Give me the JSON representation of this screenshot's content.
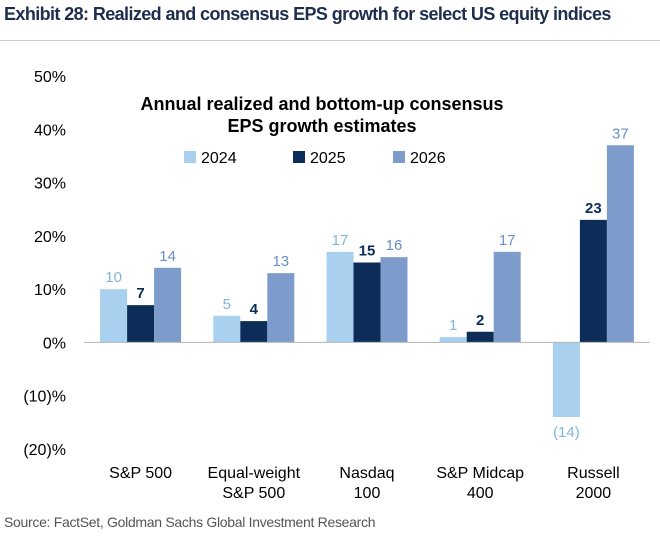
{
  "header": {
    "exhibit_title": "Exhibit 28: Realized and consensus EPS growth for select US equity indices"
  },
  "footer": {
    "source": "Source: FactSet, Goldman Sachs Global Investment Research"
  },
  "chart_data": {
    "type": "bar",
    "title_lines": [
      "Annual realized and bottom-up consensus",
      "EPS growth estimates"
    ],
    "categories": [
      [
        "S&P 500"
      ],
      [
        "Equal-weight",
        "S&P 500"
      ],
      [
        "Nasdaq",
        "100"
      ],
      [
        "S&P Midcap",
        "400"
      ],
      [
        "Russell",
        "2000"
      ]
    ],
    "series": [
      {
        "name": "2024",
        "color": "#a9d0ef",
        "label_color": "#7fb5e1",
        "label_bold": false,
        "values": [
          10,
          5,
          17,
          1,
          -14
        ],
        "labels": [
          "10",
          "5",
          "17",
          "1",
          "(14)"
        ]
      },
      {
        "name": "2025",
        "color": "#0b2d58",
        "label_color": "#0b2d58",
        "label_bold": true,
        "values": [
          7,
          4,
          15,
          2,
          23
        ],
        "labels": [
          "7",
          "4",
          "15",
          "2",
          "23"
        ]
      },
      {
        "name": "2026",
        "color": "#7d9ccb",
        "label_color": "#6a8fc6",
        "label_bold": false,
        "values": [
          14,
          13,
          16,
          17,
          37
        ],
        "labels": [
          "14",
          "13",
          "16",
          "17",
          "37"
        ]
      }
    ],
    "ylim": [
      -20,
      50
    ],
    "yticks": [
      -20,
      -10,
      0,
      10,
      20,
      30,
      40,
      50
    ],
    "ytick_labels": [
      "(20)%",
      "(10)%",
      "0%",
      "10%",
      "20%",
      "30%",
      "40%",
      "50%"
    ],
    "xlabel": "",
    "ylabel": "",
    "grid": false,
    "legend_position": "top"
  }
}
